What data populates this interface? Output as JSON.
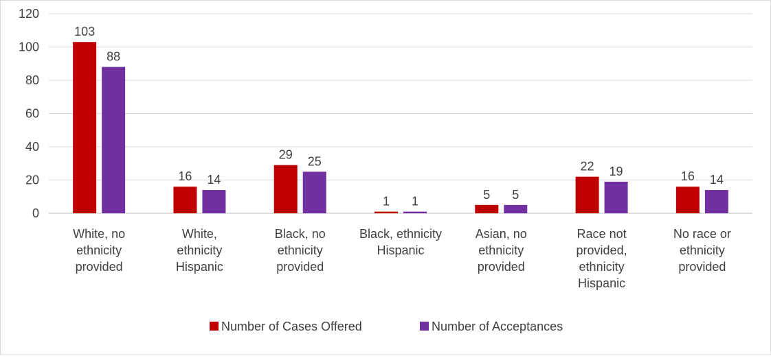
{
  "chart_data": {
    "type": "bar",
    "title": "",
    "xlabel": "",
    "ylabel": "",
    "ylim": [
      0,
      120
    ],
    "yticks": [
      0,
      20,
      40,
      60,
      80,
      100,
      120
    ],
    "grid": true,
    "legend_position": "bottom",
    "categories": [
      [
        "White, no",
        "ethnicity",
        "provided"
      ],
      [
        "White,",
        "ethnicity",
        "Hispanic"
      ],
      [
        "Black, no",
        "ethnicity",
        "provided"
      ],
      [
        "Black, ethnicity",
        "Hispanic"
      ],
      [
        "Asian, no",
        "ethnicity",
        "provided"
      ],
      [
        "Race not",
        "provided,",
        "ethnicity",
        "Hispanic"
      ],
      [
        "No race or",
        "ethnicity",
        "provided"
      ]
    ],
    "series": [
      {
        "name": "Number of Cases Offered",
        "color": "#c00000",
        "values": [
          103,
          16,
          29,
          1,
          5,
          22,
          16
        ]
      },
      {
        "name": "Number of Acceptances",
        "color": "#7030a0",
        "values": [
          88,
          14,
          25,
          1,
          5,
          19,
          14
        ]
      }
    ]
  }
}
